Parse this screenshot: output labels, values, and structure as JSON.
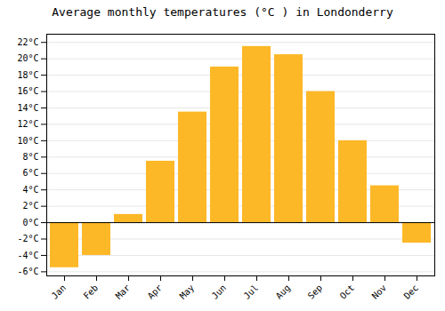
{
  "chart_data": {
    "type": "bar",
    "title": "Average monthly temperatures (°C ) in Londonderry",
    "categories": [
      "Jan",
      "Feb",
      "Mar",
      "Apr",
      "May",
      "Jun",
      "Jul",
      "Aug",
      "Sep",
      "Oct",
      "Nov",
      "Dec"
    ],
    "values": [
      -5.5,
      -4.0,
      1.0,
      7.5,
      13.5,
      19.0,
      21.5,
      20.5,
      16.0,
      10.0,
      4.5,
      -2.5
    ],
    "color": "#FDB827",
    "ylim": [
      -6.5,
      23.0
    ],
    "yticks": [
      {
        "value": -6,
        "label": "-6°C"
      },
      {
        "value": -4,
        "label": "-4°C"
      },
      {
        "value": -2,
        "label": "-2°C"
      },
      {
        "value": 0,
        "label": "0°C"
      },
      {
        "value": 2,
        "label": "2°C"
      },
      {
        "value": 4,
        "label": "4°C"
      },
      {
        "value": 6,
        "label": "6°C"
      },
      {
        "value": 8,
        "label": "8°C"
      },
      {
        "value": 10,
        "label": "10°C"
      },
      {
        "value": 12,
        "label": "12°C"
      },
      {
        "value": 14,
        "label": "14°C"
      },
      {
        "value": 16,
        "label": "16°C"
      },
      {
        "value": 18,
        "label": "18°C"
      },
      {
        "value": 20,
        "label": "20°C"
      },
      {
        "value": 22,
        "label": "22°C"
      }
    ],
    "grid": true
  }
}
